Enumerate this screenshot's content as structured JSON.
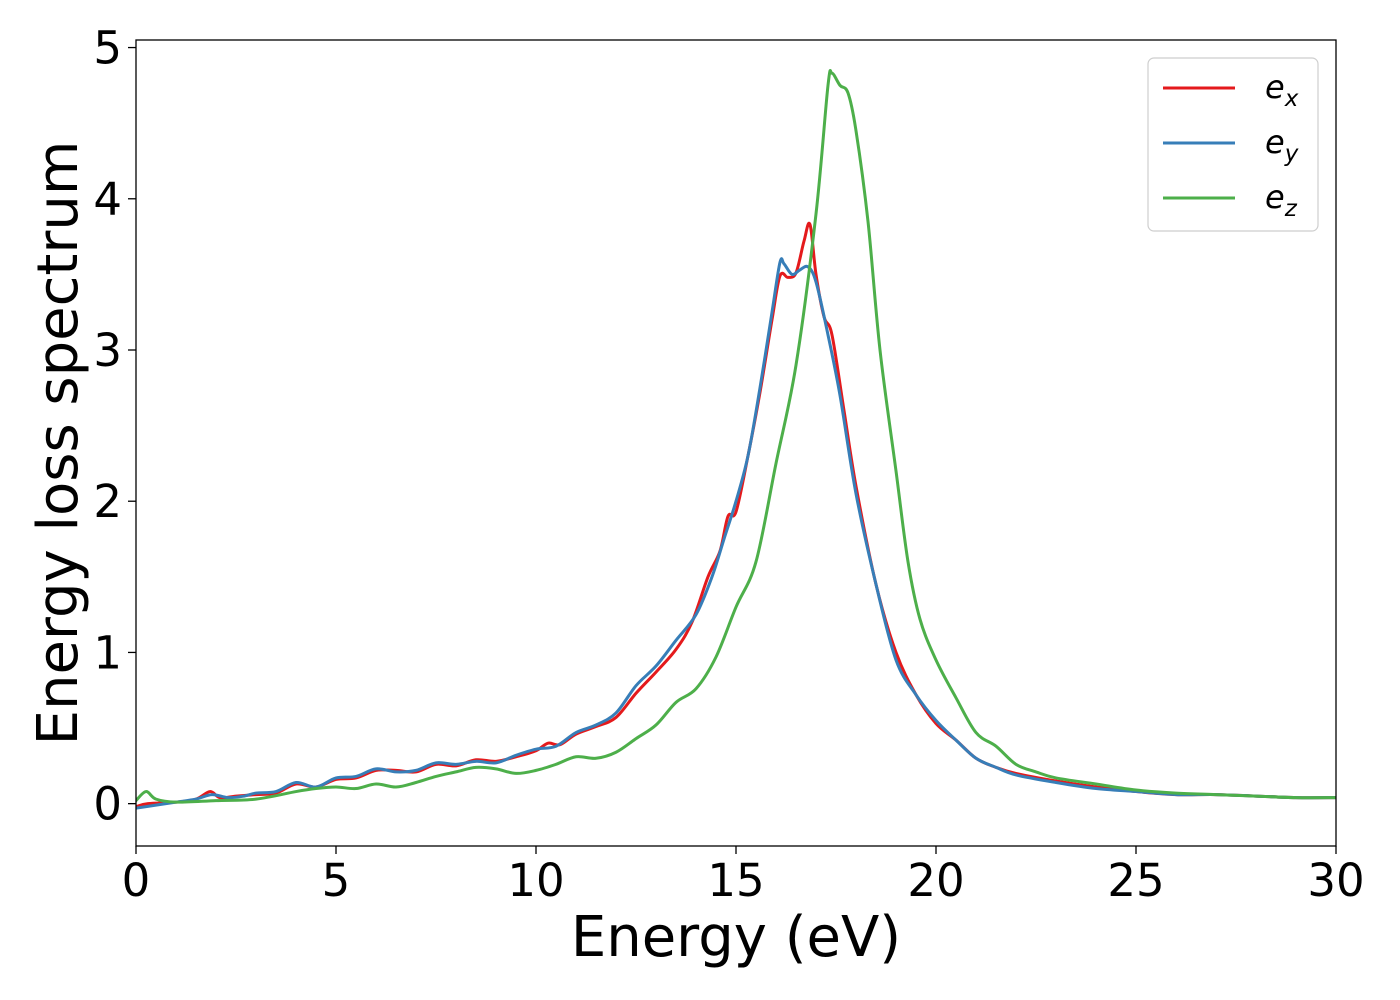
{
  "chart_data": {
    "type": "line",
    "title": "",
    "xlabel": "Energy (eV)",
    "ylabel": "Energy loss spectrum",
    "xlim": [
      0,
      30
    ],
    "ylim": [
      -0.28,
      5.05
    ],
    "xticks": [
      0,
      5,
      10,
      15,
      20,
      25,
      30
    ],
    "yticks": [
      0,
      1,
      2,
      3,
      4,
      5
    ],
    "xtick_labels": [
      "0",
      "5",
      "10",
      "15",
      "20",
      "25",
      "30"
    ],
    "ytick_labels": [
      "0",
      "1",
      "2",
      "3",
      "4",
      "5"
    ],
    "grid": false,
    "legend_position": "top-right",
    "series": [
      {
        "name": "e_x",
        "label_base": "e",
        "label_sub": "x",
        "color": "#e41a1c",
        "points": [
          [
            0.0,
            -0.02
          ],
          [
            0.3,
            0.0
          ],
          [
            1.0,
            0.01
          ],
          [
            1.5,
            0.03
          ],
          [
            1.85,
            0.08
          ],
          [
            2.1,
            0.04
          ],
          [
            2.5,
            0.05
          ],
          [
            3.0,
            0.06
          ],
          [
            3.5,
            0.07
          ],
          [
            4.0,
            0.13
          ],
          [
            4.5,
            0.11
          ],
          [
            5.0,
            0.16
          ],
          [
            5.5,
            0.17
          ],
          [
            6.0,
            0.22
          ],
          [
            6.5,
            0.22
          ],
          [
            7.0,
            0.21
          ],
          [
            7.5,
            0.26
          ],
          [
            8.0,
            0.25
          ],
          [
            8.5,
            0.29
          ],
          [
            9.0,
            0.28
          ],
          [
            9.5,
            0.31
          ],
          [
            10.0,
            0.35
          ],
          [
            10.3,
            0.4
          ],
          [
            10.6,
            0.39
          ],
          [
            11.0,
            0.46
          ],
          [
            11.5,
            0.51
          ],
          [
            12.0,
            0.57
          ],
          [
            12.5,
            0.73
          ],
          [
            13.0,
            0.87
          ],
          [
            13.5,
            1.02
          ],
          [
            13.9,
            1.2
          ],
          [
            14.3,
            1.5
          ],
          [
            14.6,
            1.67
          ],
          [
            14.8,
            1.9
          ],
          [
            15.0,
            1.93
          ],
          [
            15.3,
            2.3
          ],
          [
            15.6,
            2.72
          ],
          [
            15.9,
            3.2
          ],
          [
            16.1,
            3.49
          ],
          [
            16.3,
            3.48
          ],
          [
            16.5,
            3.51
          ],
          [
            16.7,
            3.72
          ],
          [
            16.85,
            3.83
          ],
          [
            17.0,
            3.5
          ],
          [
            17.2,
            3.22
          ],
          [
            17.4,
            3.1
          ],
          [
            17.7,
            2.6
          ],
          [
            18.0,
            2.1
          ],
          [
            18.5,
            1.45
          ],
          [
            19.0,
            1.0
          ],
          [
            19.5,
            0.72
          ],
          [
            20.0,
            0.53
          ],
          [
            20.5,
            0.42
          ],
          [
            21.0,
            0.3
          ],
          [
            21.5,
            0.24
          ],
          [
            22.0,
            0.2
          ],
          [
            23.0,
            0.15
          ],
          [
            24.0,
            0.11
          ],
          [
            25.0,
            0.08
          ],
          [
            26.0,
            0.06
          ],
          [
            27.0,
            0.06
          ],
          [
            28.0,
            0.05
          ],
          [
            29.0,
            0.04
          ],
          [
            30.0,
            0.04
          ]
        ]
      },
      {
        "name": "e_y",
        "label_base": "e",
        "label_sub": "y",
        "color": "#377eb8",
        "points": [
          [
            0.0,
            -0.03
          ],
          [
            0.5,
            -0.01
          ],
          [
            1.0,
            0.01
          ],
          [
            1.5,
            0.03
          ],
          [
            1.9,
            0.06
          ],
          [
            2.3,
            0.04
          ],
          [
            2.7,
            0.05
          ],
          [
            3.0,
            0.07
          ],
          [
            3.5,
            0.08
          ],
          [
            4.0,
            0.14
          ],
          [
            4.5,
            0.11
          ],
          [
            5.0,
            0.17
          ],
          [
            5.5,
            0.18
          ],
          [
            6.0,
            0.23
          ],
          [
            6.5,
            0.21
          ],
          [
            7.0,
            0.22
          ],
          [
            7.5,
            0.27
          ],
          [
            8.0,
            0.26
          ],
          [
            8.5,
            0.28
          ],
          [
            9.0,
            0.27
          ],
          [
            9.5,
            0.32
          ],
          [
            10.0,
            0.36
          ],
          [
            10.5,
            0.38
          ],
          [
            11.0,
            0.47
          ],
          [
            11.5,
            0.52
          ],
          [
            12.0,
            0.6
          ],
          [
            12.5,
            0.78
          ],
          [
            13.0,
            0.91
          ],
          [
            13.5,
            1.08
          ],
          [
            14.0,
            1.25
          ],
          [
            14.4,
            1.5
          ],
          [
            14.7,
            1.75
          ],
          [
            15.0,
            2.0
          ],
          [
            15.3,
            2.3
          ],
          [
            15.6,
            2.75
          ],
          [
            15.9,
            3.25
          ],
          [
            16.1,
            3.58
          ],
          [
            16.2,
            3.57
          ],
          [
            16.4,
            3.5
          ],
          [
            16.6,
            3.53
          ],
          [
            16.8,
            3.55
          ],
          [
            17.0,
            3.45
          ],
          [
            17.3,
            3.1
          ],
          [
            17.6,
            2.7
          ],
          [
            18.0,
            2.05
          ],
          [
            18.5,
            1.45
          ],
          [
            19.0,
            0.95
          ],
          [
            19.5,
            0.72
          ],
          [
            20.0,
            0.55
          ],
          [
            20.5,
            0.42
          ],
          [
            21.0,
            0.3
          ],
          [
            21.5,
            0.24
          ],
          [
            22.0,
            0.19
          ],
          [
            23.0,
            0.14
          ],
          [
            24.0,
            0.1
          ],
          [
            25.0,
            0.08
          ],
          [
            26.0,
            0.06
          ],
          [
            27.0,
            0.06
          ],
          [
            28.0,
            0.05
          ],
          [
            29.0,
            0.04
          ],
          [
            30.0,
            0.04
          ]
        ]
      },
      {
        "name": "e_z",
        "label_base": "e",
        "label_sub": "z",
        "color": "#4daf4a",
        "points": [
          [
            0.0,
            0.02
          ],
          [
            0.25,
            0.08
          ],
          [
            0.5,
            0.03
          ],
          [
            1.0,
            0.01
          ],
          [
            2.0,
            0.02
          ],
          [
            3.0,
            0.03
          ],
          [
            4.0,
            0.08
          ],
          [
            4.5,
            0.1
          ],
          [
            5.0,
            0.11
          ],
          [
            5.5,
            0.1
          ],
          [
            6.0,
            0.13
          ],
          [
            6.5,
            0.11
          ],
          [
            7.0,
            0.14
          ],
          [
            7.5,
            0.18
          ],
          [
            8.0,
            0.21
          ],
          [
            8.5,
            0.24
          ],
          [
            9.0,
            0.23
          ],
          [
            9.5,
            0.2
          ],
          [
            10.0,
            0.22
          ],
          [
            10.5,
            0.26
          ],
          [
            11.0,
            0.31
          ],
          [
            11.5,
            0.3
          ],
          [
            12.0,
            0.34
          ],
          [
            12.5,
            0.43
          ],
          [
            13.0,
            0.52
          ],
          [
            13.5,
            0.67
          ],
          [
            14.0,
            0.76
          ],
          [
            14.5,
            0.97
          ],
          [
            15.0,
            1.3
          ],
          [
            15.5,
            1.6
          ],
          [
            16.0,
            2.25
          ],
          [
            16.5,
            2.9
          ],
          [
            17.0,
            3.9
          ],
          [
            17.3,
            4.75
          ],
          [
            17.4,
            4.83
          ],
          [
            17.6,
            4.75
          ],
          [
            17.8,
            4.7
          ],
          [
            18.0,
            4.45
          ],
          [
            18.3,
            3.85
          ],
          [
            18.6,
            3.0
          ],
          [
            19.0,
            2.2
          ],
          [
            19.3,
            1.6
          ],
          [
            19.6,
            1.22
          ],
          [
            20.0,
            0.95
          ],
          [
            20.5,
            0.7
          ],
          [
            21.0,
            0.47
          ],
          [
            21.5,
            0.38
          ],
          [
            22.0,
            0.26
          ],
          [
            22.5,
            0.21
          ],
          [
            23.0,
            0.17
          ],
          [
            24.0,
            0.13
          ],
          [
            25.0,
            0.09
          ],
          [
            26.0,
            0.07
          ],
          [
            27.0,
            0.06
          ],
          [
            28.0,
            0.05
          ],
          [
            29.0,
            0.04
          ],
          [
            30.0,
            0.04
          ]
        ]
      }
    ]
  }
}
